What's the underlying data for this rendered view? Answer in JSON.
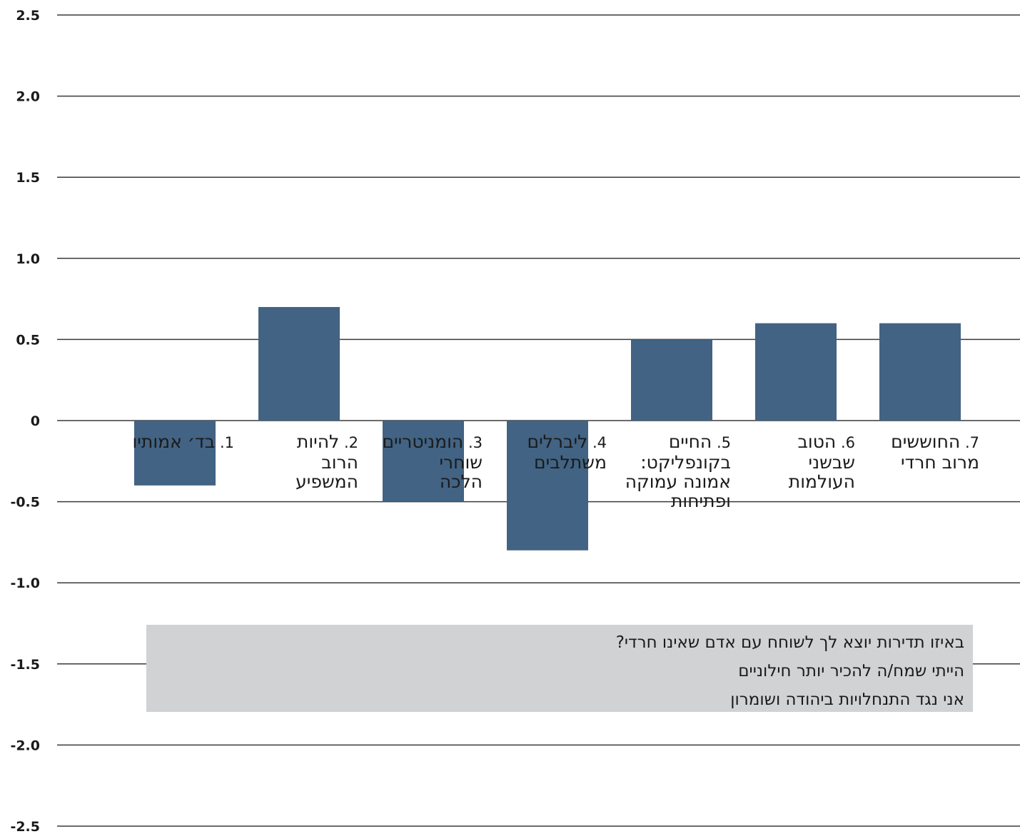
{
  "chart_data": {
    "type": "bar",
    "title": "",
    "xlabel": "",
    "ylabel": "",
    "ylim": [
      -2.5,
      2.5
    ],
    "yticks": [
      "2.5",
      "2.0",
      "1.5",
      "1.0",
      "0.5",
      "0",
      "-0.5",
      "-1.0",
      "-1.5",
      "-2.0",
      "-2.5"
    ],
    "ytick_values": [
      2.5,
      2.0,
      1.5,
      1.0,
      0.5,
      0,
      -0.5,
      -1.0,
      -1.5,
      -2.0,
      -2.5
    ],
    "grid": true,
    "bar_color": "#426383",
    "categories": [
      {
        "num": "1.",
        "lines": [
          "בד׳ אמותיו"
        ]
      },
      {
        "num": "2.",
        "lines": [
          "להיות",
          "הרוב",
          "המשפיע"
        ]
      },
      {
        "num": "3.",
        "lines": [
          "הומניטריים",
          "שוחרי",
          "הלכה"
        ]
      },
      {
        "num": "4.",
        "lines": [
          "ליברלים",
          "משתלבים"
        ]
      },
      {
        "num": "5.",
        "lines": [
          "החיים",
          "בקונפליקט:",
          "אמונה עמוקה",
          "ופתיחות"
        ]
      },
      {
        "num": "6.",
        "lines": [
          "הטוב",
          "שבשני",
          "העולמות"
        ]
      },
      {
        "num": "7.",
        "lines": [
          "החוששים",
          "מרוב חרדי"
        ]
      }
    ],
    "values": [
      -0.4,
      0.7,
      -0.5,
      -0.8,
      0.5,
      0.6,
      0.6
    ],
    "legend": {
      "placement": "bottom",
      "items": [
        "באיזו תדירות יוצא לך לשוחח עם אדם שאינו חרדי?",
        "הייתי שמח/ה להכיר יותר חילוניים",
        "אני נגד התנחלויות ביהודה ושומרון"
      ]
    }
  }
}
